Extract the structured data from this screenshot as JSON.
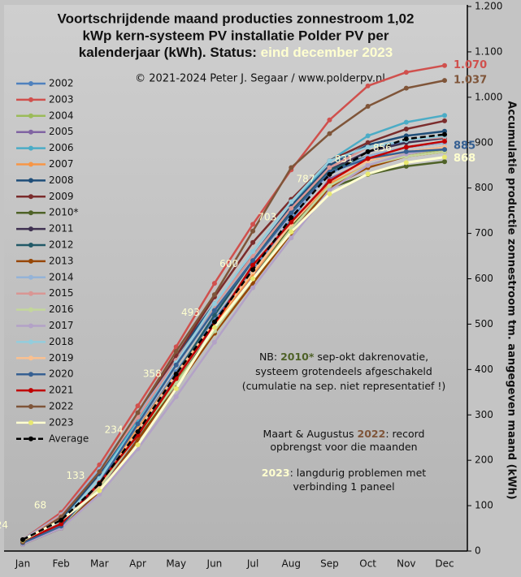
{
  "chart_data": {
    "type": "line",
    "title": [
      "Voortschrijdende maand producties zonnestroom 1,02",
      "kWp kern-systeem PV installatie Polder PV per",
      "kalenderjaar (kWh). Status: "
    ],
    "status": "eind december 2023",
    "subtitle": "© 2021-2024 Peter J. Segaar / www.polderpv.nl",
    "y_axis_label": "Accumulatie productie zonnestroom tm. aangegeven maand (kWh)",
    "categories": [
      "Jan",
      "Feb",
      "Mar",
      "Apr",
      "May",
      "Jun",
      "Jul",
      "Aug",
      "Sep",
      "Oct",
      "Nov",
      "Dec"
    ],
    "ylim": [
      0,
      1200
    ],
    "yticks": [
      0,
      100,
      200,
      300,
      400,
      500,
      600,
      700,
      800,
      900,
      {
        "value": 1000,
        "label": "1.000"
      },
      {
        "value": 1100,
        "label": "1.100"
      },
      {
        "value": 1200,
        "label": "1.200"
      }
    ],
    "legend": "left",
    "series": [
      {
        "name": "2002",
        "color": "#4f81bd",
        "values": [
          20,
          60,
          150,
          270,
          395,
          510,
          620,
          730,
          840,
          880,
          905,
          915
        ]
      },
      {
        "name": "2003",
        "color": "#d0504d",
        "values": [
          25,
          85,
          190,
          320,
          450,
          590,
          720,
          840,
          950,
          1025,
          1055,
          1070
        ],
        "value_labels": [
          null,
          null,
          null,
          null,
          null,
          null,
          null,
          null,
          null,
          null,
          null,
          "1.070"
        ]
      },
      {
        "name": "2004",
        "color": "#9bbb59",
        "values": [
          18,
          55,
          140,
          255,
          375,
          480,
          590,
          700,
          800,
          850,
          875,
          885
        ]
      },
      {
        "name": "2005",
        "color": "#8064a2",
        "values": [
          15,
          55,
          130,
          250,
          385,
          500,
          605,
          705,
          820,
          860,
          880,
          890
        ]
      },
      {
        "name": "2006",
        "color": "#4bacc6",
        "values": [
          20,
          65,
          160,
          290,
          420,
          540,
          650,
          760,
          860,
          915,
          945,
          960
        ]
      },
      {
        "name": "2007",
        "color": "#f79646",
        "values": [
          18,
          60,
          145,
          270,
          390,
          500,
          610,
          720,
          810,
          850,
          870,
          880
        ]
      },
      {
        "name": "2008",
        "color": "#1f4e79",
        "values": [
          22,
          70,
          170,
          295,
          430,
          545,
          650,
          760,
          850,
          895,
          915,
          925
        ]
      },
      {
        "name": "2009",
        "color": "#7b2c2c",
        "values": [
          25,
          75,
          175,
          300,
          430,
          560,
          680,
          775,
          860,
          900,
          930,
          948
        ]
      },
      {
        "name": "2010*",
        "color": "#4f6228",
        "values": [
          15,
          50,
          130,
          245,
          370,
          490,
          600,
          715,
          800,
          830,
          848,
          858
        ]
      },
      {
        "name": "2011",
        "color": "#3f3151",
        "values": [
          20,
          75,
          180,
          300,
          420,
          530,
          640,
          740,
          840,
          880,
          900,
          910
        ]
      },
      {
        "name": "2012",
        "color": "#215967",
        "values": [
          18,
          55,
          150,
          260,
          390,
          520,
          640,
          750,
          840,
          870,
          890,
          900
        ]
      },
      {
        "name": "2013",
        "color": "#974706",
        "values": [
          15,
          50,
          130,
          245,
          360,
          480,
          590,
          700,
          800,
          845,
          870,
          880
        ]
      },
      {
        "name": "2014",
        "color": "#95b3d7",
        "values": [
          25,
          80,
          180,
          300,
          420,
          530,
          640,
          740,
          830,
          870,
          890,
          900
        ]
      },
      {
        "name": "2015",
        "color": "#d99694",
        "values": [
          22,
          78,
          175,
          295,
          420,
          540,
          650,
          755,
          845,
          890,
          905,
          912
        ]
      },
      {
        "name": "2016",
        "color": "#c3d69b",
        "values": [
          18,
          55,
          140,
          255,
          370,
          485,
          600,
          710,
          805,
          850,
          870,
          880
        ]
      },
      {
        "name": "2017",
        "color": "#b3a2c7",
        "values": [
          15,
          50,
          125,
          225,
          340,
          460,
          580,
          690,
          795,
          850,
          875,
          888
        ]
      },
      {
        "name": "2018",
        "color": "#93cddd",
        "values": [
          22,
          65,
          160,
          280,
          415,
          545,
          660,
          770,
          860,
          890,
          905,
          915
        ]
      },
      {
        "name": "2019",
        "color": "#fac090",
        "values": [
          20,
          60,
          145,
          265,
          390,
          505,
          615,
          720,
          815,
          860,
          880,
          890
        ]
      },
      {
        "name": "2020",
        "color": "#366092",
        "values": [
          18,
          55,
          150,
          280,
          410,
          530,
          640,
          745,
          835,
          865,
          880,
          885
        ],
        "label_last": true
      },
      {
        "name": "2021",
        "color": "#c00000",
        "values": [
          22,
          60,
          150,
          255,
          380,
          500,
          630,
          725,
          815,
          865,
          890,
          903
        ]
      },
      {
        "name": "2022",
        "color": "#7f5539",
        "values": [
          20,
          75,
          175,
          305,
          440,
          565,
          705,
          845,
          920,
          980,
          1020,
          1037
        ],
        "value_labels": [
          null,
          null,
          null,
          null,
          null,
          null,
          null,
          null,
          null,
          null,
          null,
          "1.037"
        ]
      },
      {
        "name": "2023",
        "color": "#ffffd0",
        "values": [
          24,
          68,
          133,
          234,
          358,
          493,
          600,
          703,
          787,
          831,
          856,
          868
        ],
        "label_points": true
      },
      {
        "name": "Average",
        "color": "#000000",
        "dashed": true,
        "values": [
          25,
          68,
          148,
          263,
          390,
          505,
          620,
          735,
          830,
          880,
          908,
          918
        ]
      }
    ],
    "notes": [
      {
        "lines": [
          [
            {
              "text": "NB: "
            },
            {
              "text": "2010*",
              "color": "#4f6228"
            },
            {
              "text": " sep-okt dakrenovatie,"
            }
          ],
          [
            {
              "text": "systeem grotendeels afgeschakeld"
            }
          ],
          [
            {
              "text": "(cumulatie na sep. niet representatief !)"
            }
          ]
        ]
      },
      {
        "lines": [
          [
            {
              "text": "Maart & Augustus "
            },
            {
              "text": "2022",
              "color": "#7f5539"
            },
            {
              "text": ": record"
            }
          ],
          [
            {
              "text": "opbrengst voor die maanden"
            }
          ]
        ]
      },
      {
        "lines": [
          [
            {
              "text": "2023",
              "color": "#ffffd0"
            },
            {
              "text": ": langdurig problemen met"
            }
          ],
          [
            {
              "text": "verbinding 1 paneel"
            }
          ]
        ]
      }
    ]
  }
}
